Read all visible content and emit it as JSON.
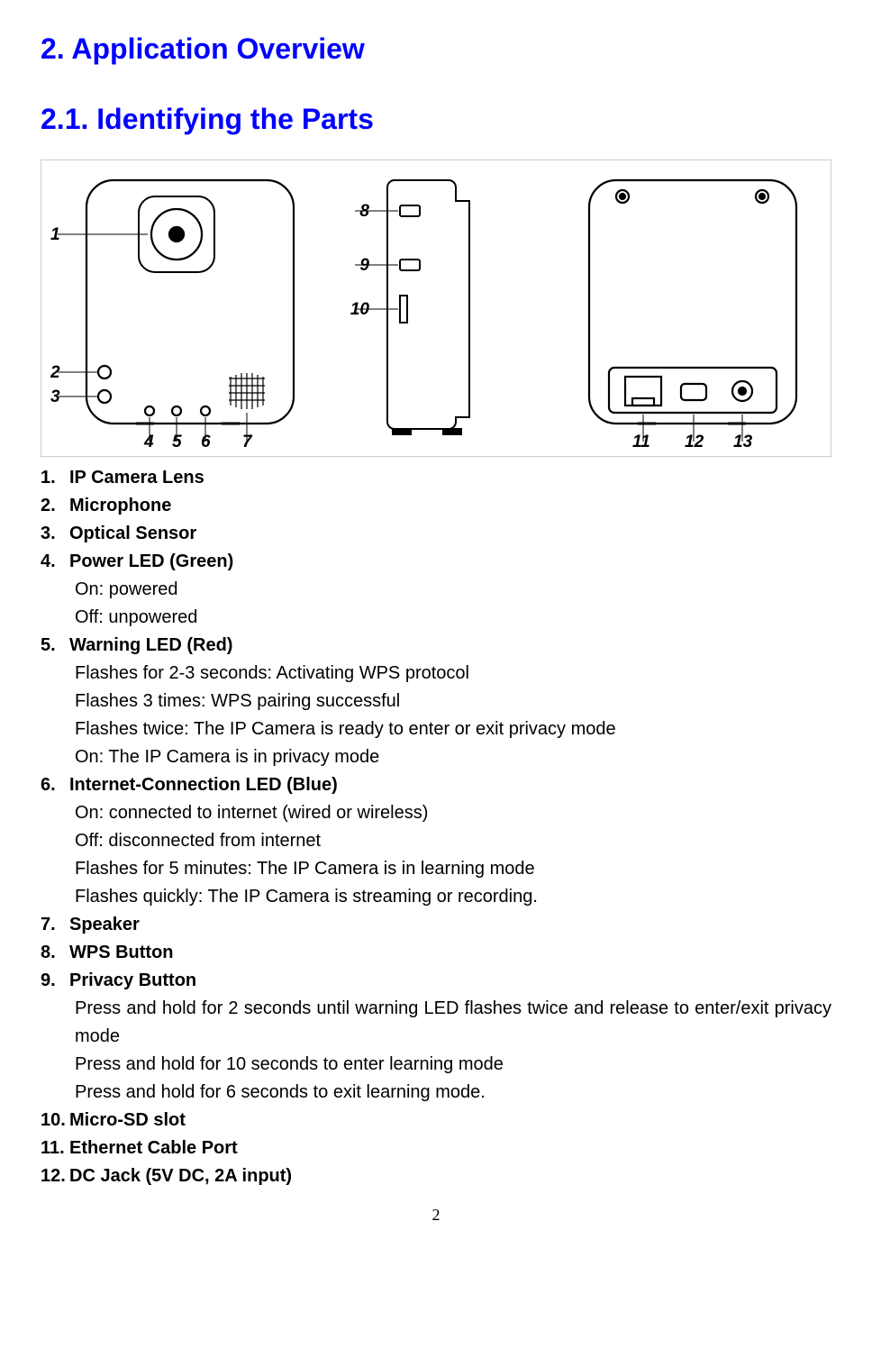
{
  "headings": {
    "h1": "2. Application Overview",
    "h2": "2.1. Identifying the Parts"
  },
  "diagram": {
    "callouts_left": [
      "1",
      "2",
      "3",
      "4",
      "5",
      "6",
      "7"
    ],
    "callouts_mid": [
      "8",
      "9",
      "10"
    ],
    "callouts_right": [
      "11",
      "12",
      "13"
    ],
    "stroke": "#000000",
    "callout_font_style": "italic",
    "callout_font_weight": "bold"
  },
  "items": [
    {
      "num": "1.",
      "label": "IP Camera Lens",
      "subs": []
    },
    {
      "num": "2.",
      "label": "Microphone",
      "subs": []
    },
    {
      "num": "3.",
      "label": "Optical Sensor",
      "subs": []
    },
    {
      "num": "4.",
      "label": "Power LED (Green)",
      "subs": [
        "On: powered",
        "Off: unpowered"
      ]
    },
    {
      "num": "5.",
      "label": "Warning LED (Red)",
      "subs": [
        "Flashes for 2-3 seconds: Activating WPS protocol",
        "Flashes 3 times: WPS pairing successful",
        "Flashes twice: The IP Camera is ready to enter or exit privacy mode",
        "On: The IP Camera is in privacy mode"
      ]
    },
    {
      "num": "6.",
      "label": "Internet-Connection LED (Blue)",
      "subs": [
        "On: connected to internet (wired or wireless)",
        "Off: disconnected from internet",
        "Flashes for 5 minutes: The IP Camera is in learning mode",
        "Flashes quickly: The IP Camera is streaming or recording."
      ]
    },
    {
      "num": "7.",
      "label": "Speaker",
      "subs": []
    },
    {
      "num": "8.",
      "label": "WPS Button",
      "subs": []
    },
    {
      "num": "9.",
      "label": "Privacy Button",
      "subs": [
        "Press and hold for 2 seconds until warning LED flashes twice and release to enter/exit privacy mode",
        "Press and hold for 10 seconds to enter learning mode",
        "Press and hold for 6 seconds to exit learning mode."
      ]
    },
    {
      "num": "10.",
      "label": "Micro-SD slot",
      "subs": []
    },
    {
      "num": "11.",
      "label": "Ethernet Cable Port",
      "subs": []
    },
    {
      "num": "12.",
      "label": "DC Jack (5V DC, 2A input)",
      "subs": []
    }
  ],
  "pagenum": "2"
}
